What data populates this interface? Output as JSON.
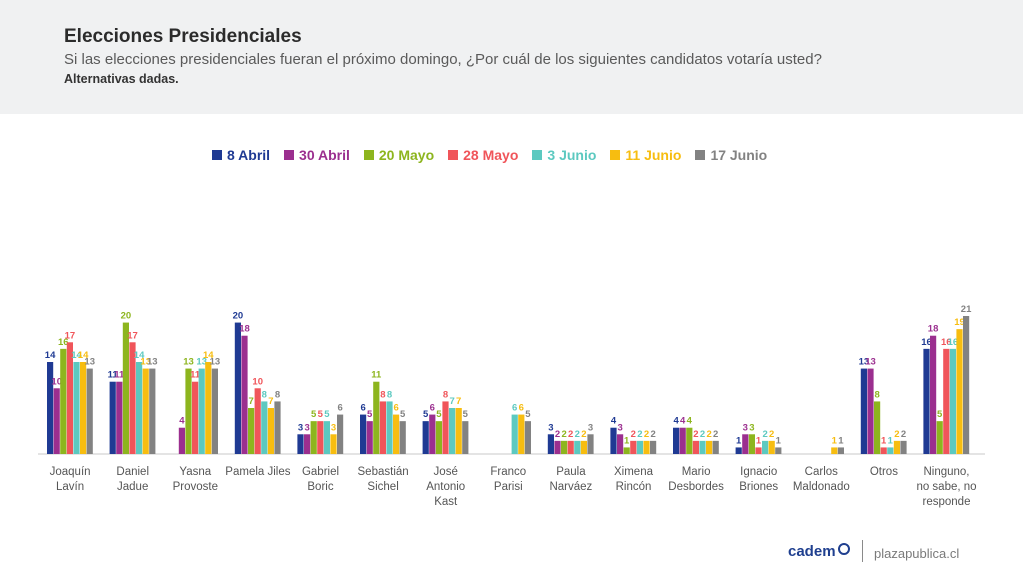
{
  "header": {
    "title": "Elecciones Presidenciales",
    "subtitle": "Si las elecciones presidenciales fueran el próximo domingo, ¿Por cuál de los siguientes candidatos votaría usted?",
    "note": "Alternativas dadas."
  },
  "footer": {
    "logo": "cadem",
    "site": "plazapublica.cl"
  },
  "chart_data": {
    "type": "bar",
    "categories": [
      [
        "Joaquín",
        "Lavín"
      ],
      [
        "Daniel",
        "Jadue"
      ],
      [
        "Yasna",
        "Provoste"
      ],
      [
        "Pamela Jiles"
      ],
      [
        "Gabriel",
        "Boric"
      ],
      [
        "Sebastián",
        "Sichel"
      ],
      [
        "José",
        "Antonio",
        "Kast"
      ],
      [
        "Franco",
        "Parisi"
      ],
      [
        "Paula",
        "Narváez"
      ],
      [
        "Ximena",
        "Rincón"
      ],
      [
        "Mario",
        "Desbordes"
      ],
      [
        "Ignacio",
        "Briones"
      ],
      [
        "Carlos",
        "Maldonado"
      ],
      [
        "Otros"
      ],
      [
        "Ninguno,",
        "no sabe, no",
        "responde"
      ]
    ],
    "series": [
      {
        "name": "8 Abril",
        "color": "#1f3a93",
        "values": [
          14,
          11,
          null,
          20,
          3,
          6,
          5,
          null,
          3,
          4,
          4,
          1,
          null,
          13,
          16
        ]
      },
      {
        "name": "30 Abril",
        "color": "#9b2f8f",
        "values": [
          10,
          11,
          4,
          18,
          3,
          5,
          6,
          null,
          2,
          3,
          4,
          3,
          null,
          13,
          18
        ]
      },
      {
        "name": "20 Mayo",
        "color": "#8db51e",
        "values": [
          16,
          20,
          13,
          7,
          5,
          11,
          5,
          null,
          2,
          1,
          4,
          3,
          null,
          8,
          5
        ]
      },
      {
        "name": "28 Mayo",
        "color": "#f0555a",
        "values": [
          17,
          17,
          11,
          10,
          5,
          8,
          8,
          null,
          2,
          2,
          2,
          1,
          null,
          1,
          16
        ]
      },
      {
        "name": "3 Junio",
        "color": "#5cc9c0",
        "values": [
          14,
          14,
          13,
          8,
          5,
          8,
          7,
          6,
          2,
          2,
          2,
          2,
          null,
          1,
          16
        ]
      },
      {
        "name": "11 Junio",
        "color": "#f7bd10",
        "values": [
          14,
          13,
          14,
          7,
          3,
          6,
          7,
          6,
          2,
          2,
          2,
          2,
          1,
          2,
          19
        ]
      },
      {
        "name": "17 Junio",
        "color": "#828282",
        "values": [
          13,
          13,
          13,
          8,
          6,
          5,
          5,
          5,
          3,
          2,
          2,
          1,
          1,
          2,
          21
        ]
      }
    ],
    "ylim": [
      0,
      21
    ],
    "grid": false,
    "legend": "top"
  }
}
